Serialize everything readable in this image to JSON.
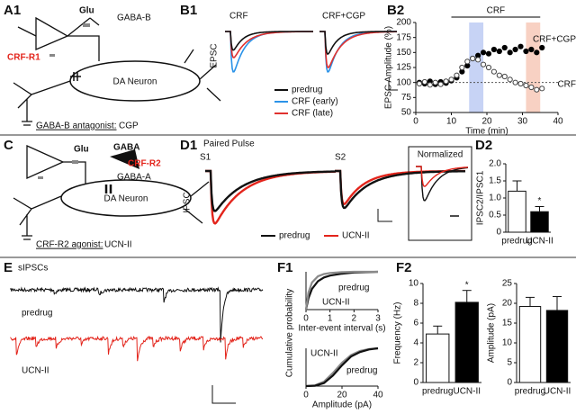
{
  "labels": [
    "A1",
    "B1",
    "B2",
    "C",
    "D1",
    "D2",
    "E",
    "F1",
    "F2"
  ],
  "a1": {
    "glu": "Glu",
    "gaba_b": "GABA-B",
    "receptor": "CRF-R1",
    "neuron": "DA Neuron",
    "caption": "GABA-B antagonist:",
    "drug": "CGP"
  },
  "b1": {
    "left": "CRF",
    "right": "CRF+CGP",
    "ylabel": "EPSC",
    "legend": [
      {
        "name": "predrug",
        "color": "#111111"
      },
      {
        "name": "CRF (early)",
        "color": "#2b93e8"
      },
      {
        "name": "CRF (late)",
        "color": "#e0312f"
      }
    ]
  },
  "c": {
    "glu": "Glu",
    "gaba": "GABA",
    "receptor": "CRF-R2",
    "gaba_a": "GABA-A",
    "neuron": "DA Neuron",
    "caption": "CRF-R2 agonist:",
    "drug": "UCN-II"
  },
  "d1": {
    "title": "Paired Pulse",
    "s1": "S1",
    "s2": "S2",
    "ylabel": "IPSC",
    "inset": "Normalized",
    "legend": [
      {
        "name": "predrug",
        "color": "#111111"
      },
      {
        "name": "UCN-II",
        "color": "#e3241b"
      }
    ]
  },
  "e": {
    "title": "sIPSCs",
    "top": "predrug",
    "bottom": "UCN-II"
  },
  "chart_data": [
    {
      "type": "scatter",
      "ylabel": "EPSC Amplitude (%)",
      "xlabel": "Time (min)",
      "xlim": [
        0,
        40
      ],
      "xticks": [
        0,
        10,
        20,
        30,
        40
      ],
      "ylim": [
        50,
        200
      ],
      "yticks": [
        50,
        75,
        100,
        125,
        150,
        175,
        200
      ],
      "annotation": {
        "text": "CRF",
        "range": [
          10,
          35
        ]
      },
      "hline": 100,
      "highlights": [
        {
          "range": [
            15,
            19
          ],
          "color": "#b9c8f2"
        },
        {
          "range": [
            31,
            35
          ],
          "color": "#f6c6b4"
        }
      ],
      "x": [
        1,
        2.5,
        4,
        5.5,
        7,
        8.5,
        10,
        11.5,
        13,
        14.5,
        16,
        17.5,
        19,
        20.5,
        22,
        23.5,
        25,
        26.5,
        28,
        29.5,
        31,
        32.5,
        34,
        35.5
      ],
      "series": [
        {
          "name": "CRF+CGP",
          "color": "#000000",
          "marker": "filled",
          "values": [
            100,
            98,
            102,
            97,
            101,
            99,
            103,
            108,
            118,
            128,
            140,
            145,
            150,
            148,
            155,
            152,
            158,
            150,
            155,
            160,
            152,
            155,
            150,
            158
          ]
        },
        {
          "name": "CRF",
          "color": "#444444",
          "marker": "open",
          "values": [
            98,
            101,
            96,
            100,
            97,
            102,
            105,
            112,
            125,
            135,
            140,
            138,
            130,
            125,
            118,
            112,
            110,
            105,
            100,
            98,
            95,
            92,
            88,
            90
          ]
        }
      ]
    },
    {
      "type": "bar",
      "ylabel": "IPSC2/IPSC1",
      "categories": [
        "predrug",
        "UCN-II"
      ],
      "values": [
        1.2,
        0.6
      ],
      "errors": [
        0.3,
        0.15
      ],
      "colors": [
        "#ffffff",
        "#000000"
      ],
      "ylim": [
        0,
        2
      ],
      "yticks": [
        0,
        0.5,
        {
          "value": 1,
          "label": "1.0"
        },
        1.5,
        {
          "value": 2,
          "label": "2.0"
        }
      ],
      "annotations": [
        {
          "category": "UCN-II",
          "text": "*"
        }
      ]
    },
    {
      "type": "line",
      "ylabel": "Cumulative probability",
      "xlabel": "Inter-event interval (s)",
      "xlim": [
        0,
        3
      ],
      "xticks": [
        0,
        1,
        2,
        3
      ],
      "ylim": [
        0,
        1
      ],
      "x": [
        0,
        0.1,
        0.25,
        0.5,
        0.75,
        1,
        1.5,
        2,
        2.5,
        3
      ],
      "series": [
        {
          "name": "predrug",
          "color": "#111111",
          "values": [
            0,
            0.3,
            0.55,
            0.75,
            0.85,
            0.9,
            0.95,
            0.98,
            0.99,
            1
          ]
        },
        {
          "name": "UCN-II",
          "color": "#8a8a8a",
          "values": [
            0,
            0.45,
            0.72,
            0.88,
            0.94,
            0.97,
            0.99,
            1,
            1,
            1
          ]
        }
      ]
    },
    {
      "type": "line",
      "xlabel": "Amplitude (pA)",
      "xlim": [
        0,
        40
      ],
      "xticks": [
        0,
        20,
        40
      ],
      "ylim": [
        0,
        1
      ],
      "x": [
        0,
        5,
        10,
        15,
        20,
        25,
        30,
        35,
        40
      ],
      "series": [
        {
          "name": "UCN-II",
          "color": "#8a8a8a",
          "values": [
            0,
            0.02,
            0.12,
            0.35,
            0.62,
            0.82,
            0.93,
            0.98,
            1
          ]
        },
        {
          "name": "predrug",
          "color": "#111111",
          "values": [
            0,
            0.01,
            0.08,
            0.28,
            0.55,
            0.78,
            0.9,
            0.97,
            1
          ]
        }
      ]
    },
    {
      "type": "bar",
      "ylabel": "Frequency (Hz)",
      "categories": [
        "predrug",
        "UCN-II"
      ],
      "values": [
        4.9,
        8.1
      ],
      "errors": [
        0.8,
        1.2
      ],
      "colors": [
        "#ffffff",
        "#000000"
      ],
      "ylim": [
        0,
        10
      ],
      "yticks": [
        0,
        2,
        4,
        6,
        8,
        10
      ],
      "annotations": [
        {
          "category": "UCN-II",
          "text": "*"
        }
      ]
    },
    {
      "type": "bar",
      "ylabel": "Amplitude (pA)",
      "categories": [
        "predrug",
        "UCN-II"
      ],
      "values": [
        19.2,
        18.2
      ],
      "errors": [
        2.3,
        3.5
      ],
      "colors": [
        "#ffffff",
        "#000000"
      ],
      "ylim": [
        0,
        25
      ],
      "yticks": [
        0,
        5,
        10,
        15,
        20,
        25
      ]
    }
  ]
}
